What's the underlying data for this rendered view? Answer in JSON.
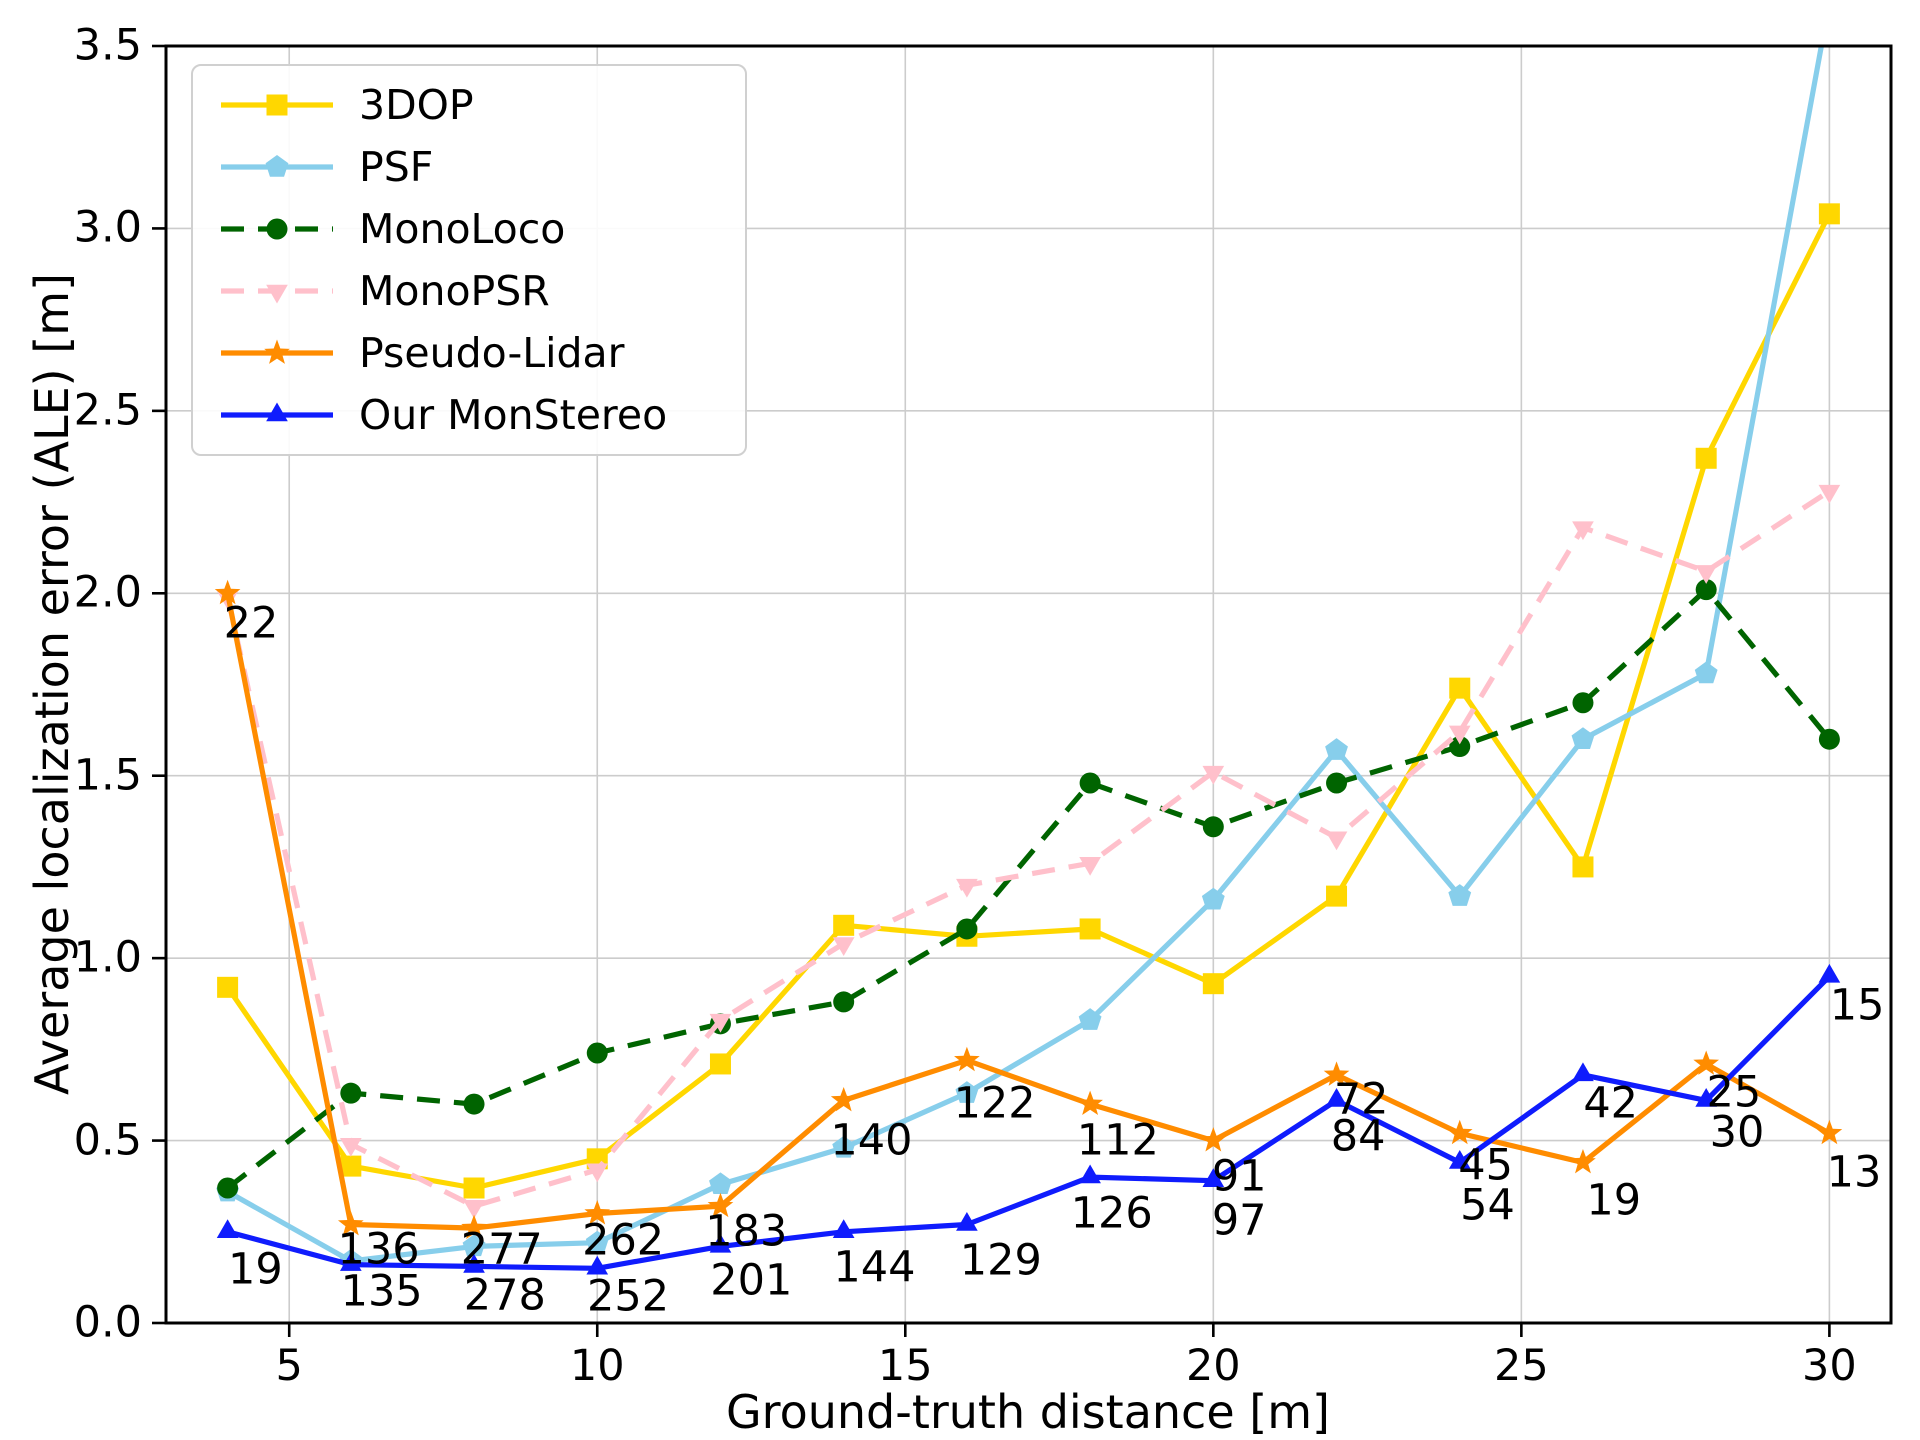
{
  "figure": {
    "xlabel": "Ground-truth distance [m]",
    "ylabel": "Average localization error (ALE) [m]",
    "x_tick_labels": [
      "5",
      "10",
      "15",
      "20",
      "25",
      "30"
    ],
    "x_tick_values": [
      5,
      10,
      15,
      20,
      25,
      30
    ],
    "y_tick_labels": [
      "0.0",
      "0.5",
      "1.0",
      "1.5",
      "2.0",
      "2.5",
      "3.0",
      "3.5"
    ],
    "y_tick_values": [
      0,
      0.5,
      1.0,
      1.5,
      2.0,
      2.5,
      3.0,
      3.5
    ],
    "grid_color": "#cccccc",
    "spine_color": "#000000",
    "background": "#ffffff"
  },
  "chart_data": {
    "type": "line",
    "title": "",
    "xlabel": "Ground-truth distance [m]",
    "ylabel": "Average localization error (ALE) [m]",
    "xlim": [
      3.0,
      31.0
    ],
    "ylim": [
      0.0,
      3.5
    ],
    "grid": true,
    "legend_position": "upper left",
    "x": [
      4,
      6,
      8,
      10,
      12,
      14,
      16,
      18,
      20,
      22,
      24,
      26,
      28,
      30
    ],
    "series": [
      {
        "name": "3DOP",
        "color": "#ffd700",
        "linestyle": "solid",
        "marker": "square",
        "values": [
          0.92,
          0.43,
          0.37,
          0.45,
          0.71,
          1.09,
          1.06,
          1.08,
          0.93,
          1.17,
          1.74,
          1.25,
          2.37,
          3.04
        ]
      },
      {
        "name": "PSF",
        "color": "#87ceeb",
        "linestyle": "solid",
        "marker": "pentagon",
        "values": [
          0.36,
          0.17,
          0.21,
          0.22,
          0.38,
          0.48,
          0.63,
          0.83,
          1.16,
          1.57,
          1.17,
          1.6,
          1.78,
          3.62
        ]
      },
      {
        "name": "MonoLoco",
        "color": "#006400",
        "linestyle": "dashed",
        "marker": "circle",
        "values": [
          0.37,
          0.63,
          0.6,
          0.74,
          0.82,
          0.88,
          1.08,
          1.48,
          1.36,
          1.48,
          1.58,
          1.7,
          2.01,
          1.6
        ]
      },
      {
        "name": "MonoPSR",
        "color": "#ffc0cb",
        "linestyle": "dashed",
        "marker": "triangle-down",
        "values": [
          1.99,
          0.49,
          0.32,
          0.42,
          0.83,
          1.04,
          1.2,
          1.26,
          1.51,
          1.33,
          1.62,
          2.18,
          2.06,
          2.28
        ]
      },
      {
        "name": "Pseudo-Lidar",
        "color": "#ff8c00",
        "linestyle": "solid",
        "marker": "star",
        "values": [
          2.0,
          0.27,
          0.26,
          0.3,
          0.32,
          0.61,
          0.72,
          0.6,
          0.5,
          0.68,
          0.52,
          0.44,
          0.71,
          0.52
        ]
      },
      {
        "name": "Our MonStereo",
        "color": "#0f1cfd",
        "linestyle": "solid",
        "marker": "triangle-up",
        "values": [
          0.25,
          0.16,
          0.155,
          0.15,
          0.21,
          0.25,
          0.27,
          0.4,
          0.39,
          0.61,
          0.44,
          0.68,
          0.61,
          0.95
        ]
      }
    ],
    "annotations": [
      {
        "text": "22",
        "x": 4.38,
        "y": 1.915
      },
      {
        "text": "19",
        "x": 4.45,
        "y": 0.145
      },
      {
        "text": "136",
        "x": 6.45,
        "y": 0.2
      },
      {
        "text": "135",
        "x": 6.5,
        "y": 0.085
      },
      {
        "text": "277",
        "x": 8.45,
        "y": 0.2
      },
      {
        "text": "278",
        "x": 8.5,
        "y": 0.075
      },
      {
        "text": "262",
        "x": 10.42,
        "y": 0.225
      },
      {
        "text": "252",
        "x": 10.5,
        "y": 0.07
      },
      {
        "text": "183",
        "x": 12.42,
        "y": 0.25
      },
      {
        "text": "201",
        "x": 12.5,
        "y": 0.115
      },
      {
        "text": "140",
        "x": 14.45,
        "y": 0.5
      },
      {
        "text": "144",
        "x": 14.5,
        "y": 0.15
      },
      {
        "text": "122",
        "x": 16.45,
        "y": 0.6
      },
      {
        "text": "129",
        "x": 16.55,
        "y": 0.17
      },
      {
        "text": "112",
        "x": 18.45,
        "y": 0.5
      },
      {
        "text": "126",
        "x": 18.35,
        "y": 0.3
      },
      {
        "text": "91",
        "x": 20.42,
        "y": 0.4
      },
      {
        "text": "97",
        "x": 20.42,
        "y": 0.28
      },
      {
        "text": "72",
        "x": 22.4,
        "y": 0.61
      },
      {
        "text": "84",
        "x": 22.35,
        "y": 0.51
      },
      {
        "text": "45",
        "x": 24.42,
        "y": 0.43
      },
      {
        "text": "54",
        "x": 24.45,
        "y": 0.32
      },
      {
        "text": "42",
        "x": 26.45,
        "y": 0.6
      },
      {
        "text": "19",
        "x": 26.5,
        "y": 0.335
      },
      {
        "text": "25",
        "x": 28.45,
        "y": 0.63
      },
      {
        "text": "30",
        "x": 28.5,
        "y": 0.52
      },
      {
        "text": "15",
        "x": 30.45,
        "y": 0.87
      },
      {
        "text": "13",
        "x": 30.4,
        "y": 0.41
      }
    ]
  }
}
